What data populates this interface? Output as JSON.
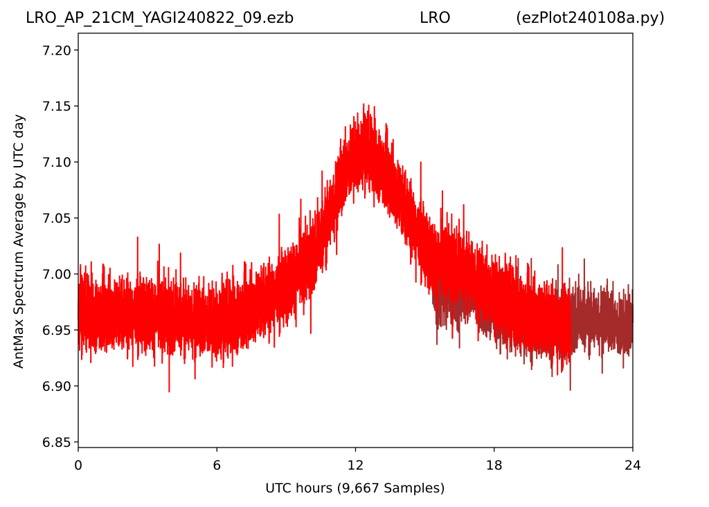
{
  "header": {
    "left": "LRO_AP_21CM_YAGI240822_09.ezb",
    "center": "LRO",
    "right": "(ezPlot240108a.py)"
  },
  "colors": {
    "primary_series": "#ff0000",
    "secondary_series": "#a52a2a",
    "axis": "#000000",
    "background": "#ffffff"
  },
  "chart_data": {
    "type": "line",
    "title": "LRO_AP_21CM_YAGI240822_09.ezb LRO (ezPlot240108a.py)",
    "xlabel": "UTC hours  (9,667 Samples)",
    "ylabel": "AntMax Spectrum Average by UTC day",
    "xlim": [
      0,
      24
    ],
    "ylim": [
      6.845,
      7.215
    ],
    "xticks": [
      0,
      6,
      12,
      18,
      24
    ],
    "xtick_labels": [
      "0",
      "6",
      "12",
      "18",
      "24"
    ],
    "yticks": [
      6.85,
      6.9,
      6.95,
      7.0,
      7.05,
      7.1,
      7.15,
      7.2
    ],
    "ytick_labels": [
      "6.85",
      "6.90",
      "6.95",
      "7.00",
      "7.05",
      "7.10",
      "7.15",
      "7.20"
    ],
    "grid": false,
    "legend": "none",
    "series": [
      {
        "color": "#a52a2a",
        "x": [
          15.3,
          15.6,
          16.0,
          16.4,
          16.8,
          17.2,
          17.6,
          18.0,
          18.5,
          19.0,
          19.5,
          20.0,
          20.5,
          21.0,
          21.5,
          22.0,
          22.5,
          23.0,
          23.5,
          24.0
        ],
        "y": [
          7.0,
          6.98,
          6.99,
          6.98,
          6.99,
          6.98,
          6.97,
          6.97,
          6.96,
          6.96,
          6.95,
          6.96,
          6.95,
          6.95,
          6.96,
          6.96,
          6.96,
          6.96,
          6.95,
          6.96
        ],
        "noise": 0.05,
        "n": 2400
      },
      {
        "color": "#ff0000",
        "x": [
          0,
          1,
          2,
          3,
          4,
          5,
          6,
          7,
          8,
          9,
          10,
          10.5,
          11,
          11.5,
          12,
          12.5,
          13,
          13.5,
          14,
          14.5,
          15,
          15.5,
          16,
          16.5,
          17,
          17.5,
          18,
          18.5,
          19,
          19.5,
          20,
          20.5,
          21,
          21.3
        ],
        "y": [
          6.965,
          6.965,
          6.965,
          6.965,
          6.96,
          6.96,
          6.955,
          6.965,
          6.975,
          6.99,
          7.01,
          7.03,
          7.06,
          7.09,
          7.105,
          7.11,
          7.1,
          7.085,
          7.065,
          7.045,
          7.025,
          7.01,
          7.01,
          7.005,
          7.0,
          6.99,
          6.98,
          6.975,
          6.97,
          6.965,
          6.96,
          6.96,
          6.955,
          6.955
        ],
        "noise": 0.055,
        "n": 7267
      }
    ]
  }
}
